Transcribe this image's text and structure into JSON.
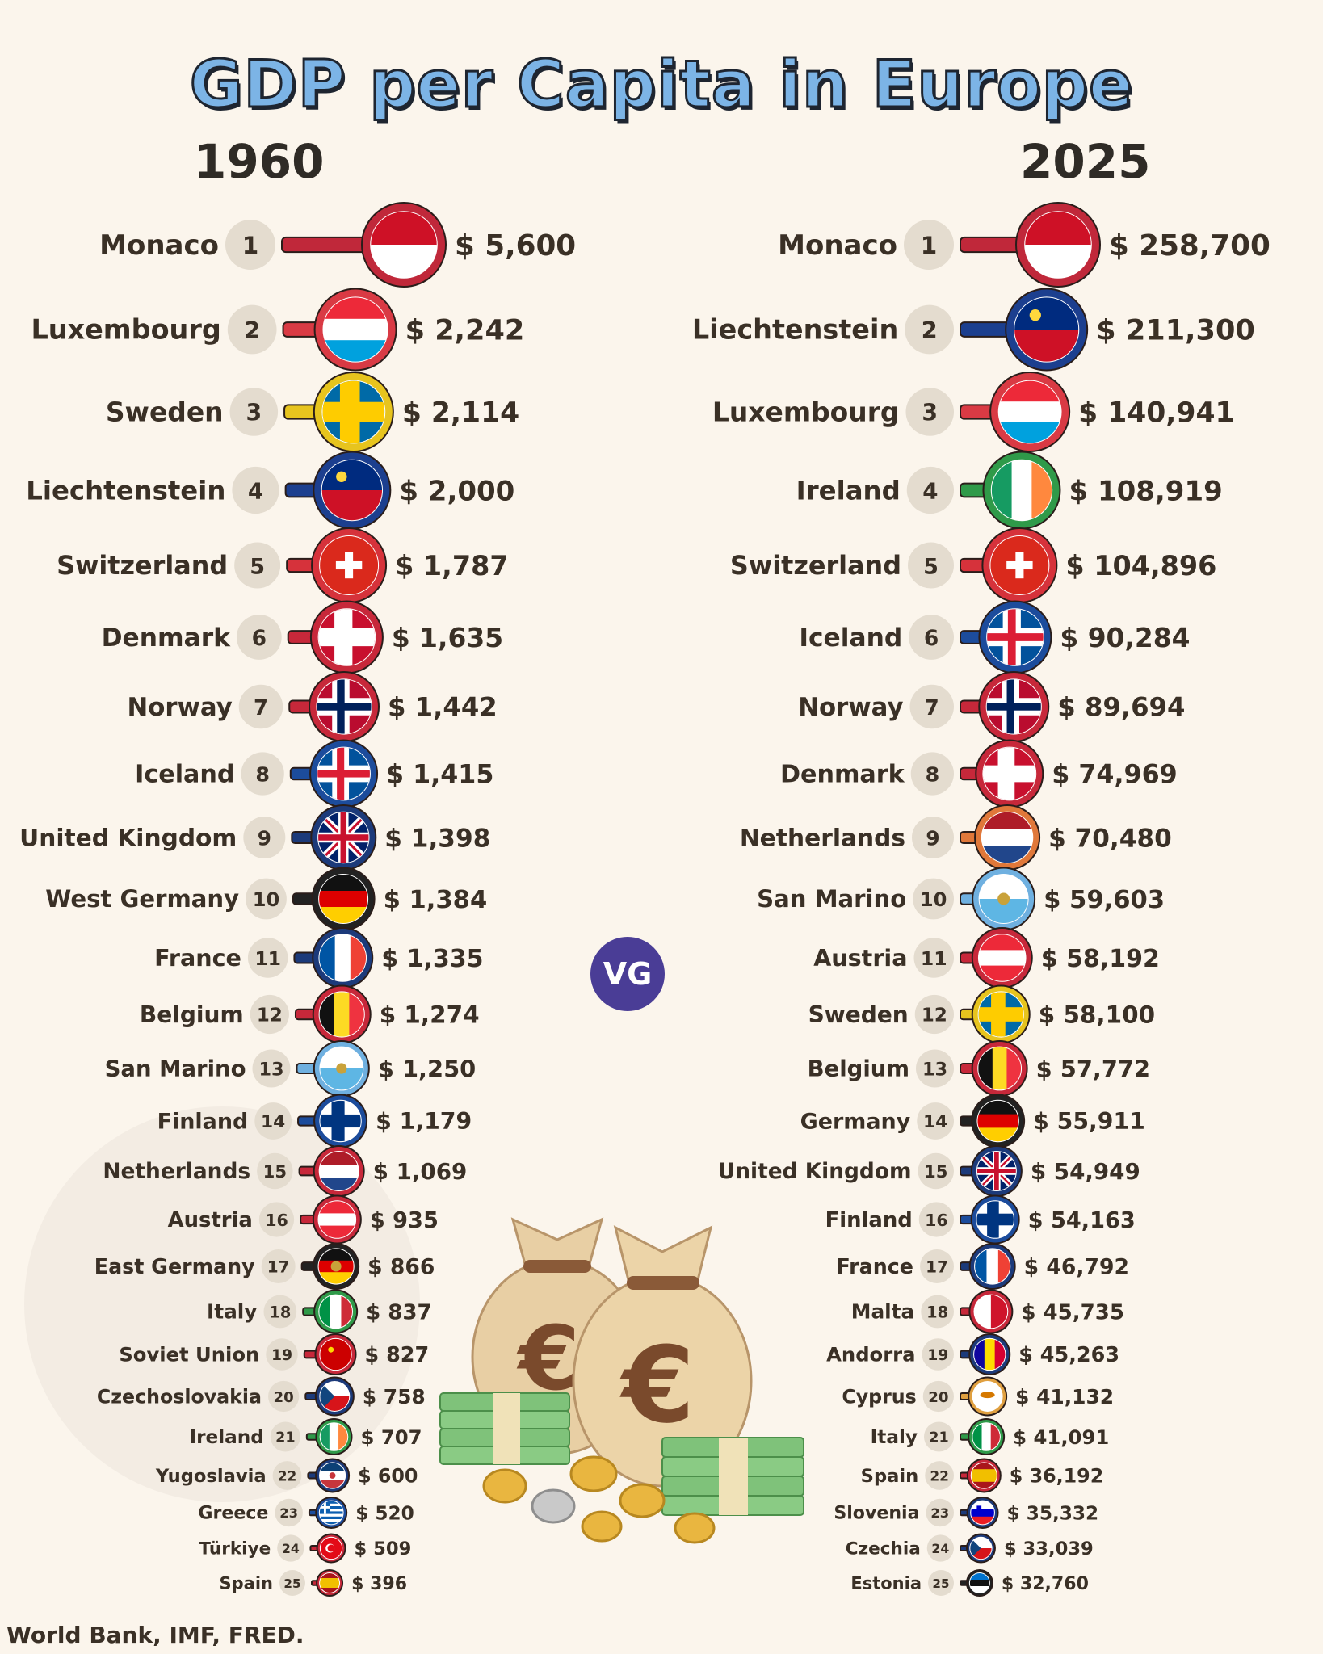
{
  "title": "GDP per Capita in Europe",
  "source": "World Bank, IMF, FRED.",
  "logo_text": "VG",
  "illustration": "money bags with euro sign, banknote stacks and coins",
  "chart_data": [
    {
      "type": "bar",
      "title": "1960",
      "xlabel": "",
      "ylabel": "",
      "categories": [
        "Monaco",
        "Luxembourg",
        "Sweden",
        "Liechtenstein",
        "Switzerland",
        "Denmark",
        "Norway",
        "Iceland",
        "United Kingdom",
        "West Germany",
        "France",
        "Belgium",
        "San Marino",
        "Finland",
        "Netherlands",
        "Austria",
        "East Germany",
        "Italy",
        "Soviet Union",
        "Czechoslovakia",
        "Ireland",
        "Yugoslavia",
        "Greece",
        "Türkiye",
        "Spain"
      ],
      "values": [
        5600,
        2242,
        2114,
        2000,
        1787,
        1635,
        1442,
        1415,
        1398,
        1384,
        1335,
        1274,
        1250,
        1179,
        1069,
        935,
        866,
        837,
        827,
        758,
        707,
        600,
        520,
        509,
        396
      ],
      "labels": [
        "$ 5,600",
        "$ 2,242",
        "$ 2,114",
        "$ 2,000",
        "$ 1,787",
        "$ 1,635",
        "$ 1,442",
        "$ 1,415",
        "$ 1,398",
        "$ 1,384",
        "$ 1,335",
        "$ 1,274",
        "$ 1,250",
        "$ 1,179",
        "$ 1,069",
        "$ 935",
        "$ 866",
        "$ 837",
        "$ 827",
        "$ 758",
        "$ 707",
        "$ 600",
        "$ 520",
        "$ 509",
        "$ 396"
      ],
      "ranks": [
        "1",
        "2",
        "3",
        "4",
        "5",
        "6",
        "7",
        "8",
        "9",
        "10",
        "11",
        "12",
        "13",
        "14",
        "15",
        "16",
        "17",
        "18",
        "19",
        "20",
        "21",
        "22",
        "23",
        "24",
        "25"
      ],
      "flags": [
        "monaco",
        "luxembourg",
        "sweden",
        "liechtenstein",
        "switzerland",
        "denmark",
        "norway",
        "iceland",
        "united-kingdom",
        "germany",
        "france",
        "belgium",
        "san-marino",
        "finland",
        "netherlands",
        "austria",
        "east-germany",
        "italy",
        "soviet-union",
        "czech",
        "ireland",
        "yugoslavia",
        "greece",
        "turkiye",
        "spain"
      ],
      "ring_colors": [
        "#c0283a",
        "#d93a44",
        "#e7c41e",
        "#1c3f8f",
        "#d6323b",
        "#c7283a",
        "#c7283a",
        "#1c4c9c",
        "#1c3a7a",
        "#222222",
        "#1c3a7a",
        "#c7283a",
        "#6fb0e0",
        "#1c4c9c",
        "#c7283a",
        "#c7283a",
        "#222222",
        "#2f9a49",
        "#c7283a",
        "#1c3a7a",
        "#2f9a49",
        "#1c3a7a",
        "#1c4c9c",
        "#c7283a",
        "#c7283a"
      ]
    },
    {
      "type": "bar",
      "title": "2025",
      "xlabel": "",
      "ylabel": "",
      "categories": [
        "Monaco",
        "Liechtenstein",
        "Luxembourg",
        "Ireland",
        "Switzerland",
        "Iceland",
        "Norway",
        "Denmark",
        "Netherlands",
        "San Marino",
        "Austria",
        "Sweden",
        "Belgium",
        "Germany",
        "United Kingdom",
        "Finland",
        "France",
        "Malta",
        "Andorra",
        "Cyprus",
        "Italy",
        "Spain",
        "Slovenia",
        "Czechia",
        "Estonia"
      ],
      "values": [
        258700,
        211300,
        140941,
        108919,
        104896,
        90284,
        89694,
        74969,
        70480,
        59603,
        58192,
        58100,
        57772,
        55911,
        54949,
        54163,
        46792,
        45735,
        45263,
        41132,
        41091,
        36192,
        35332,
        33039,
        32760
      ],
      "labels": [
        "$ 258,700",
        "$ 211,300",
        "$ 140,941",
        "$ 108,919",
        "$ 104,896",
        "$ 90,284",
        "$ 89,694",
        "$ 74,969",
        "$ 70,480",
        "$ 59,603",
        "$ 58,192",
        "$ 58,100",
        "$ 57,772",
        "$ 55,911",
        "$ 54,949",
        "$ 54,163",
        "$ 46,792",
        "$ 45,735",
        "$ 45,263",
        "$ 41,132",
        "$ 41,091",
        "$ 36,192",
        "$ 35,332",
        "$ 33,039",
        "$ 32,760"
      ],
      "ranks": [
        "1",
        "2",
        "3",
        "4",
        "5",
        "6",
        "7",
        "8",
        "9",
        "10",
        "11",
        "12",
        "13",
        "14",
        "15",
        "16",
        "17",
        "18",
        "19",
        "20",
        "21",
        "22",
        "23",
        "24",
        "25"
      ],
      "flags": [
        "monaco",
        "liechtenstein",
        "luxembourg",
        "ireland",
        "switzerland",
        "iceland",
        "norway",
        "denmark",
        "netherlands",
        "san-marino",
        "austria",
        "sweden",
        "belgium",
        "germany",
        "united-kingdom",
        "finland",
        "france",
        "malta",
        "andorra",
        "cyprus",
        "italy",
        "spain",
        "slovenia",
        "czech",
        "estonia"
      ],
      "ring_colors": [
        "#c0283a",
        "#1c3f8f",
        "#d93a44",
        "#2f9a49",
        "#d6323b",
        "#1c4c9c",
        "#c7283a",
        "#c7283a",
        "#e0783a",
        "#6fb0e0",
        "#c7283a",
        "#e7c41e",
        "#c7283a",
        "#222222",
        "#1c3a7a",
        "#1c4c9c",
        "#1c3a7a",
        "#c7283a",
        "#1c3a7a",
        "#e0a040",
        "#2f9a49",
        "#c7283a",
        "#1c3a7a",
        "#1c3a7a",
        "#222222"
      ]
    }
  ]
}
